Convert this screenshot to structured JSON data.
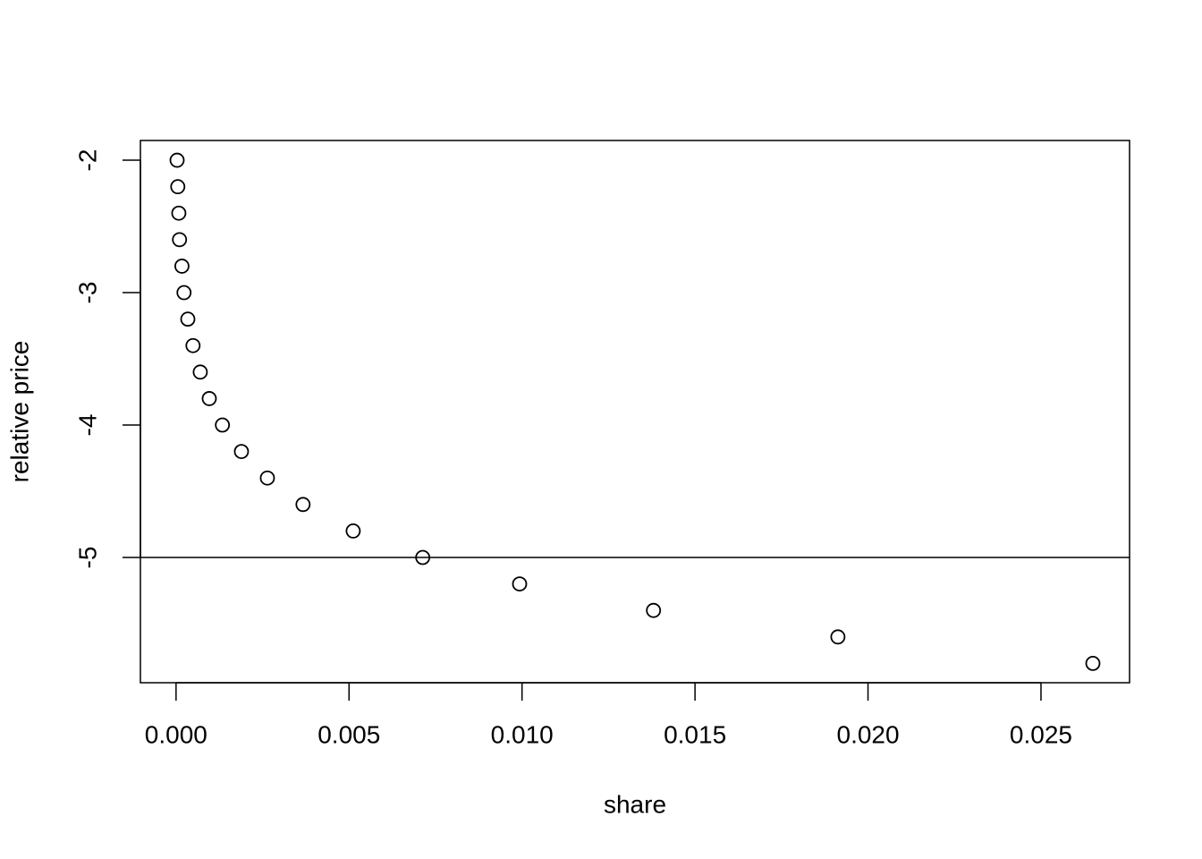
{
  "chart_data": {
    "type": "scatter",
    "xlabel": "share",
    "ylabel": "relative price",
    "x": [
      3e-05,
      5e-05,
      8e-05,
      0.0001,
      0.00017,
      0.00023,
      0.00034,
      0.00049,
      0.0007,
      0.00096,
      0.00134,
      0.00189,
      0.00264,
      0.00367,
      0.00512,
      0.00713,
      0.00993,
      0.0138,
      0.01913,
      0.0265
    ],
    "values": [
      -2,
      -2.2,
      -2.4,
      -2.6,
      -2.8,
      -3,
      -3.2,
      -3.4,
      -3.6,
      -3.8,
      -4,
      -4.2,
      -4.4,
      -4.6,
      -4.8,
      -5,
      -5.2,
      -5.4,
      -5.6,
      -5.8
    ],
    "color": "#000000",
    "hline": -5,
    "xlim": [
      -0.00103,
      0.02756
    ],
    "ylim": [
      -5.946,
      -1.851
    ],
    "xticks": [
      {
        "value": 0,
        "label": "0.000"
      },
      {
        "value": 0.005,
        "label": "0.005"
      },
      {
        "value": 0.01,
        "label": "0.010"
      },
      {
        "value": 0.015,
        "label": "0.015"
      },
      {
        "value": 0.02,
        "label": "0.020"
      },
      {
        "value": 0.025,
        "label": "0.025"
      }
    ],
    "yticks": [
      -2,
      -3,
      -4,
      -5
    ]
  }
}
